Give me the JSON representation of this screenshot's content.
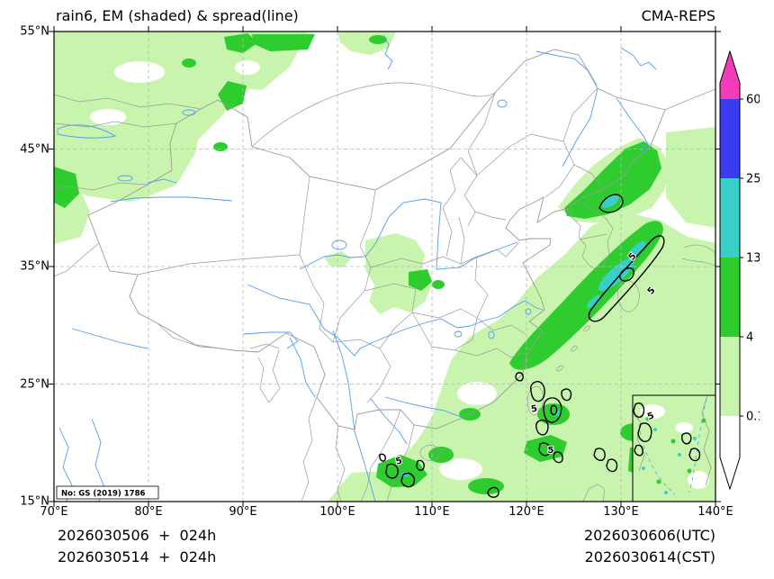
{
  "header": {
    "title": "rain6, EM (shaded) & spread(line)",
    "product": "CMA-REPS"
  },
  "axes": {
    "x_ticks": [
      "70°E",
      "80°E",
      "90°E",
      "100°E",
      "110°E",
      "120°E",
      "130°E",
      "140°E"
    ],
    "y_ticks": [
      "55°N",
      "45°N",
      "35°N",
      "25°N",
      "15°N"
    ]
  },
  "palette": {
    "magenta": "#f23cb8",
    "blue": "#3a3af0",
    "cyan": "#38cfc8",
    "green": "#2ecc2e",
    "light": "#c9f4ae",
    "none": "#ffffff",
    "river": "#4f9df5",
    "border": "#9a9a9a",
    "grid": "#b8b8b8",
    "contour": "#000000",
    "dashline": "#55b8dd"
  },
  "colorbar": {
    "labels": [
      "60",
      "25",
      "13",
      "4",
      "0.1"
    ]
  },
  "map": {
    "contour_label": "5",
    "stamp": "No: GS (2019) 1786"
  },
  "footer": {
    "init_line_utc": "2026030506  +  024h",
    "init_line_cst": "2026030514  +  024h",
    "valid_line_utc": "2026030606(UTC)",
    "valid_line_cst": "2026030614(CST)"
  },
  "chart_data": {
    "type": "heatmap",
    "title": "rain6, EM (shaded) & spread(line)",
    "model": "CMA-REPS",
    "shaded_variable": "6-h rainfall ensemble mean (EM)",
    "line_variable": "ensemble spread",
    "x_axis": {
      "label": "longitude",
      "range": [
        70,
        140
      ],
      "ticks": [
        "70°E",
        "80°E",
        "90°E",
        "100°E",
        "110°E",
        "120°E",
        "130°E",
        "140°E"
      ]
    },
    "y_axis": {
      "label": "latitude",
      "range": [
        15,
        55
      ],
      "ticks": [
        "55°N",
        "45°N",
        "35°N",
        "25°N",
        "15°N"
      ]
    },
    "shading_levels": [
      0.1,
      4,
      13,
      25,
      60
    ],
    "shading_colors": [
      "#ffffff",
      "#c9f4ae",
      "#2ecc2e",
      "#38cfc8",
      "#3a3af0",
      "#f23cb8"
    ],
    "colorbar_extend": "both",
    "spread_contour_labels": [
      5
    ],
    "grid": true,
    "init_time_utc": "2026030506",
    "init_time_cst": "2026030514",
    "forecast_hour": "024h",
    "valid_time_utc": "2026030606",
    "valid_time_cst": "2026030614",
    "license_note": "No: GS (2019) 1786",
    "shaded_regions": [
      {
        "area": "NW China / Xinjiang and Central Asia border",
        "approx_lon": [
          70,
          97
        ],
        "approx_lat": [
          40,
          55
        ],
        "band": "0.1-4 mm with patches 4-13 mm"
      },
      {
        "area": "Central China (Gansu-Shaanxi-Sichuan)",
        "approx_lon": [
          101,
          112
        ],
        "approx_lat": [
          29,
          38
        ],
        "band": "0.1-4 mm, spots 4-13 mm"
      },
      {
        "area": "East China Sea - Korea - Japan rain band",
        "approx_lon": [
          118,
          135
        ],
        "approx_lat": [
          27,
          39
        ],
        "band": "4-13 mm band with 13-25 mm core, spread contours labelled 5"
      },
      {
        "area": "Northeast China / Korea border",
        "approx_lon": [
          124,
          135
        ],
        "approx_lat": [
          39,
          46
        ],
        "band": "4-13 mm with 13-25 mm patch"
      },
      {
        "area": "South China coast, Hainan, Taiwan, Philippine Sea, South China Sea inset",
        "approx_lon": [
          99,
          140
        ],
        "approx_lat": [
          15,
          27
        ],
        "band": "0.1-4 mm with scattered 4-13 mm cells and spread-5 contours"
      }
    ]
  }
}
